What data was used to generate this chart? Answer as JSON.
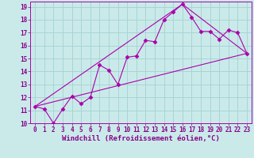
{
  "xlabel": "Windchill (Refroidissement éolien,°C)",
  "ylabel": "",
  "background_color": "#caeaea",
  "grid_color": "#a8d4d4",
  "line_color": "#aa00aa",
  "xlim": [
    -0.5,
    23.5
  ],
  "ylim": [
    10,
    19.4
  ],
  "xticks": [
    0,
    1,
    2,
    3,
    4,
    5,
    6,
    7,
    8,
    9,
    10,
    11,
    12,
    13,
    14,
    15,
    16,
    17,
    18,
    19,
    20,
    21,
    22,
    23
  ],
  "yticks": [
    10,
    11,
    12,
    13,
    14,
    15,
    16,
    17,
    18,
    19
  ],
  "line1_x": [
    0,
    1,
    2,
    3,
    4,
    5,
    6,
    7,
    8,
    9,
    10,
    11,
    12,
    13,
    14,
    15,
    16,
    17,
    18,
    19,
    20,
    21,
    22,
    23
  ],
  "line1_y": [
    11.3,
    11.1,
    10.0,
    11.1,
    12.1,
    11.5,
    12.0,
    14.5,
    14.1,
    13.0,
    15.1,
    15.2,
    16.4,
    16.3,
    18.0,
    18.6,
    19.2,
    18.2,
    17.1,
    17.1,
    16.5,
    17.2,
    17.0,
    15.4
  ],
  "line2_x": [
    0,
    23
  ],
  "line2_y": [
    11.3,
    15.4
  ],
  "line3_x": [
    0,
    16,
    23
  ],
  "line3_y": [
    11.3,
    19.2,
    15.4
  ],
  "marker": "D",
  "marker_size": 2.5,
  "font_color": "#880088",
  "tick_fontsize": 5.5,
  "xlabel_fontsize": 6.5
}
